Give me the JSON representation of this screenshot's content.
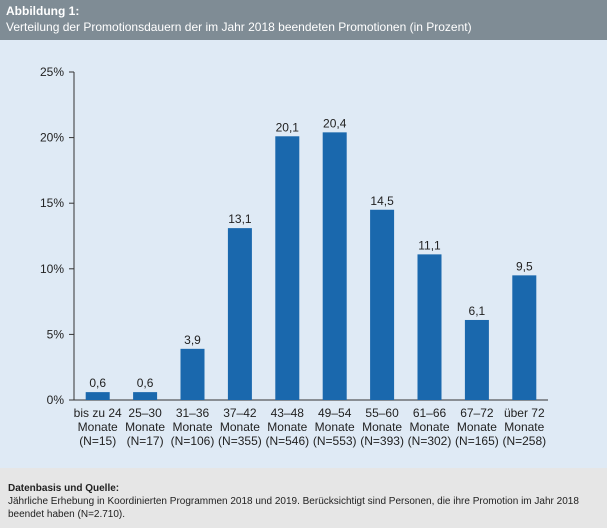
{
  "header": {
    "title": "Abbildung 1:",
    "subtitle": "Verteilung der Promotionsdauern der im Jahr 2018 beendeten Promotionen (in Prozent)"
  },
  "source": {
    "title": "Datenbasis und Quelle:",
    "text": "Jährliche Erhebung in Koordinierten Programmen 2018 und 2019. Berücksichtigt sind Personen, die ihre Promotion im Jahr 2018 beendet haben (N=2.710)."
  },
  "colors": {
    "bar": "#1a68ad",
    "background": "#dfeaf5",
    "header": "#7f8c95"
  },
  "chart_data": {
    "type": "bar",
    "categories": [
      [
        "bis zu 24",
        "Monate",
        "(N=15)"
      ],
      [
        "25–30",
        "Monate",
        "(N=17)"
      ],
      [
        "31–36",
        "Monate",
        "(N=106)"
      ],
      [
        "37–42",
        "Monate",
        "(N=355)"
      ],
      [
        "43–48",
        "Monate",
        "(N=546)"
      ],
      [
        "49–54",
        "Monate",
        "(N=553)"
      ],
      [
        "55–60",
        "Monate",
        "(N=393)"
      ],
      [
        "61–66",
        "Monate",
        "(N=302)"
      ],
      [
        "67–72",
        "Monate",
        "(N=165)"
      ],
      [
        "über 72",
        "Monate",
        "(N=258)"
      ]
    ],
    "values": [
      0.6,
      0.6,
      3.9,
      13.1,
      20.1,
      20.4,
      14.5,
      11.1,
      6.1,
      9.5
    ],
    "value_labels": [
      "0,6",
      "0,6",
      "3,9",
      "13,1",
      "20,1",
      "20,4",
      "14,5",
      "11,1",
      "6,1",
      "9,5"
    ],
    "yticks": [
      0,
      5,
      10,
      15,
      20,
      25
    ],
    "ytick_labels": [
      "0%",
      "5%",
      "10%",
      "15%",
      "20%",
      "25%"
    ],
    "ylim": [
      0,
      25
    ],
    "grid": false,
    "legend": "none"
  }
}
